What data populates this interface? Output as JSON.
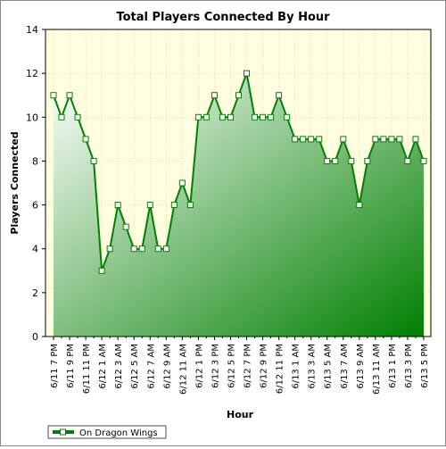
{
  "chart_data": {
    "type": "area",
    "title": "Total Players Connected By Hour",
    "xlabel": "Hour",
    "ylabel": "Players Connected",
    "ylim": [
      0,
      14
    ],
    "yticks": [
      0,
      2,
      4,
      6,
      8,
      10,
      12,
      14
    ],
    "grid": true,
    "legend_position": "bottom-left",
    "plot_background": "#ffffe0",
    "series": [
      {
        "name": "On Dragon Wings",
        "color": "#008000",
        "values": [
          11,
          10,
          11,
          10,
          9,
          8,
          3,
          4,
          6,
          5,
          4,
          4,
          6,
          4,
          4,
          6,
          7,
          6,
          10,
          10,
          11,
          10,
          10,
          11,
          12,
          10,
          10,
          10,
          11,
          10,
          9,
          9,
          9,
          9,
          8,
          8,
          9,
          8,
          6,
          8,
          9,
          9,
          9,
          9,
          8,
          9,
          8
        ]
      }
    ],
    "x_tick_labels": [
      "6/11 7 PM",
      "6/11 9 PM",
      "6/11 11 PM",
      "6/12 1 AM",
      "6/12 3 AM",
      "6/12 5 AM",
      "6/12 7 AM",
      "6/12 9 AM",
      "6/12 11 AM",
      "6/12 1 PM",
      "6/12 3 PM",
      "6/12 5 PM",
      "6/12 7 PM",
      "6/12 9 PM",
      "6/12 11 PM",
      "6/13 1 AM",
      "6/13 3 AM",
      "6/13 5 AM",
      "6/13 7 AM",
      "6/13 9 AM",
      "6/13 11 AM",
      "6/13 1 PM",
      "6/13 3 PM",
      "6/13 5 PM"
    ]
  }
}
